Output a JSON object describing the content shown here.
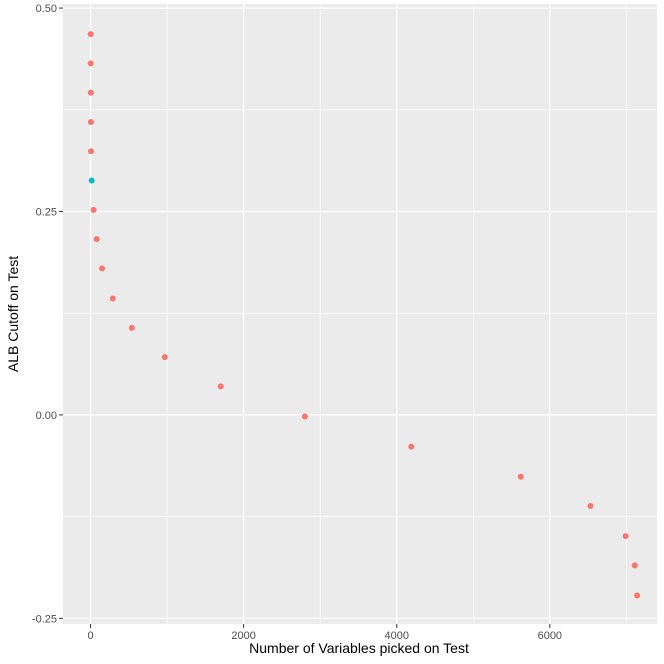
{
  "chart_data": {
    "type": "scatter",
    "xlabel": "Number of Variables picked on Test",
    "ylabel": "ALB Cutoff on Test",
    "xlim": [
      -360,
      7400
    ],
    "ylim": [
      -0.257,
      0.505
    ],
    "x_ticks": [
      0,
      2000,
      4000,
      6000
    ],
    "x_tick_labels": [
      "0",
      "2000",
      "4000",
      "6000"
    ],
    "y_ticks": [
      -0.25,
      0.0,
      0.25,
      0.5
    ],
    "y_tick_labels": [
      "-0.25",
      "0.00",
      "0.25",
      "0.50"
    ],
    "grid": true,
    "legend": "none",
    "colors": {
      "panel_background": "#ebebeb",
      "grid_line": "#ffffff",
      "default_point": "#f8766d",
      "highlight_point": "#00bfc4"
    },
    "points": [
      {
        "x": 2,
        "y": 0.468,
        "group": "default"
      },
      {
        "x": 3,
        "y": 0.432,
        "group": "default"
      },
      {
        "x": 4,
        "y": 0.396,
        "group": "default"
      },
      {
        "x": 5,
        "y": 0.36,
        "group": "default"
      },
      {
        "x": 6,
        "y": 0.324,
        "group": "default"
      },
      {
        "x": 15,
        "y": 0.288,
        "group": "highlight"
      },
      {
        "x": 40,
        "y": 0.252,
        "group": "default"
      },
      {
        "x": 80,
        "y": 0.216,
        "group": "default"
      },
      {
        "x": 150,
        "y": 0.18,
        "group": "default"
      },
      {
        "x": 290,
        "y": 0.143,
        "group": "default"
      },
      {
        "x": 540,
        "y": 0.107,
        "group": "default"
      },
      {
        "x": 970,
        "y": 0.071,
        "group": "default"
      },
      {
        "x": 1700,
        "y": 0.035,
        "group": "default"
      },
      {
        "x": 2800,
        "y": -0.002,
        "group": "default"
      },
      {
        "x": 4190,
        "y": -0.039,
        "group": "default"
      },
      {
        "x": 5620,
        "y": -0.076,
        "group": "default"
      },
      {
        "x": 6530,
        "y": -0.112,
        "group": "default"
      },
      {
        "x": 6990,
        "y": -0.149,
        "group": "default"
      },
      {
        "x": 7110,
        "y": -0.185,
        "group": "default"
      },
      {
        "x": 7140,
        "y": -0.222,
        "group": "default"
      }
    ]
  }
}
